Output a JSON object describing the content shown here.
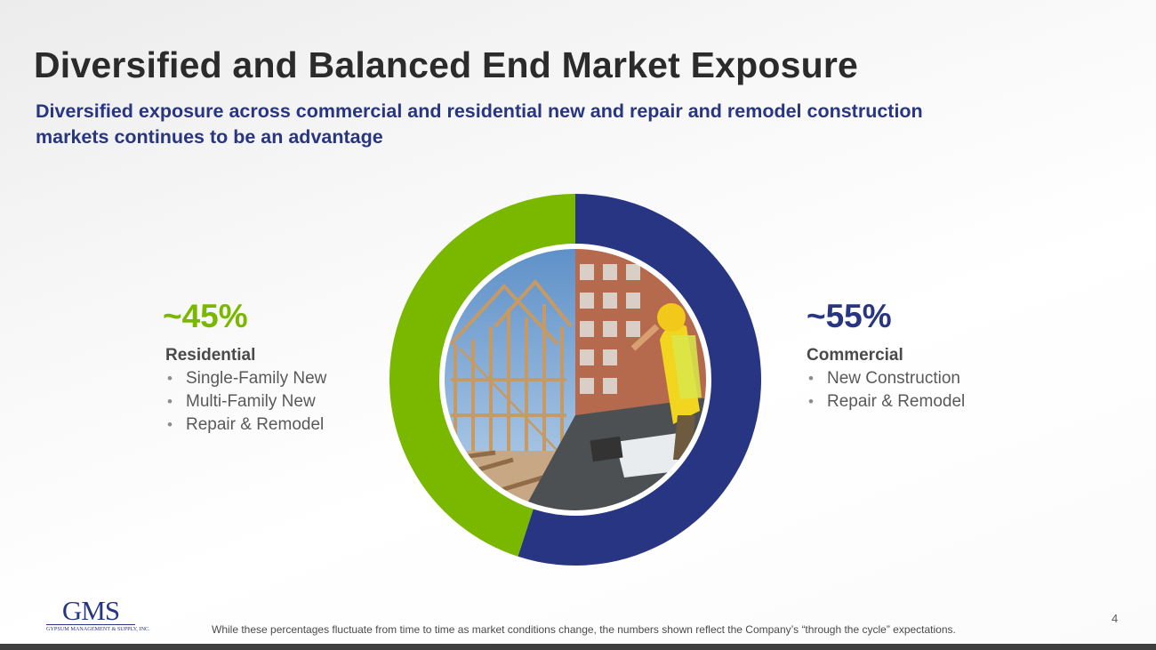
{
  "slide": {
    "title": "Diversified and Balanced End Market Exposure",
    "subtitle": "Diversified exposure across commercial and residential new and repair and remodel construction markets continues to be an advantage",
    "page_number": "4",
    "footnote": "While these percentages fluctuate from time to time as market conditions change, the numbers shown reflect the Company’s “through the cycle” expectations."
  },
  "segments": {
    "residential": {
      "percent": "~45%",
      "value": 45,
      "title": "Residential",
      "items": [
        "Single-Family New",
        "Multi-Family New",
        "Repair & Remodel"
      ],
      "color": "#7ab800"
    },
    "commercial": {
      "percent": "~55%",
      "value": 55,
      "title": "Commercial",
      "items": [
        "New Construction",
        "Repair & Remodel"
      ],
      "color": "#283583"
    }
  },
  "logo": {
    "main": "GMS",
    "sub": "GYPSUM MANAGEMENT & SUPPLY, INC."
  },
  "colors": {
    "title": "#2b2b2b",
    "subtitle": "#283583",
    "bottom_bar": "#3f3f3f"
  }
}
